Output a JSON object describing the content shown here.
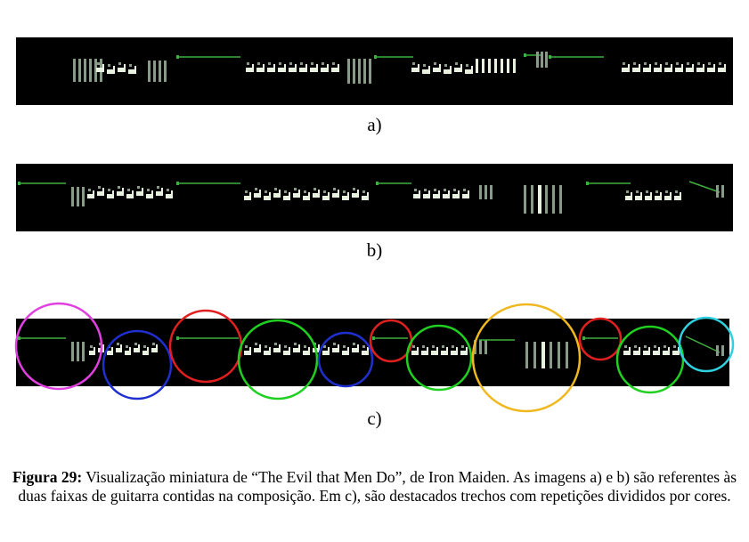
{
  "panels": [
    {
      "label": "a)"
    },
    {
      "label": "b)"
    },
    {
      "label": "c)"
    }
  ],
  "caption": {
    "prefix": "Figura 29:",
    "text": " Visualização miniatura de “The Evil that Men Do”, de Iron Maiden. As imagens a) e b) são referentes às duas faixas de guitarra contidas na composição. Em c), são destacados trechos com repetições divididos por cores."
  },
  "colors": {
    "background": "#000000",
    "note_white": "#e8f0e0",
    "note_grey": "#8a9a88",
    "note_green": "#3fae3f",
    "circle_magenta": "#e040e0",
    "circle_blue": "#2030d0",
    "circle_red": "#e02020",
    "circle_green": "#20d020",
    "circle_yellow": "#f0b820",
    "circle_cyan": "#30d0e0"
  }
}
